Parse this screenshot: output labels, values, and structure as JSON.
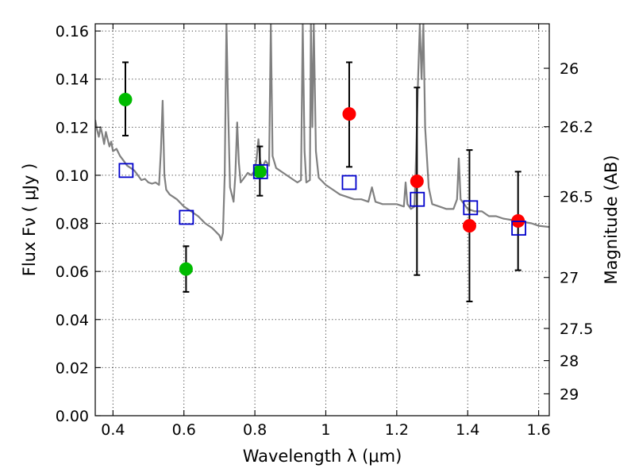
{
  "chart_data": {
    "type": "scatter",
    "title": "",
    "xlabel": "Wavelength  λ (μm)",
    "ylabel": "Flux  Fν  ( μJy )",
    "y2label": "Magnitude (AB)",
    "xlim": [
      0.35,
      1.63
    ],
    "ylim": [
      0.0,
      0.163
    ],
    "grid": true,
    "xticks": [
      0.4,
      0.6,
      0.8,
      1.0,
      1.2,
      1.4,
      1.6
    ],
    "xtick_labels": [
      "0.4",
      "0.6",
      "0.8",
      "1",
      "1.2",
      "1.4",
      "1.6"
    ],
    "yticks": [
      0.0,
      0.02,
      0.04,
      0.06,
      0.08,
      0.1,
      0.12,
      0.14,
      0.16
    ],
    "ytick_labels": [
      "0.00",
      "0.02",
      "0.04",
      "0.06",
      "0.08",
      "0.10",
      "0.12",
      "0.14",
      "0.16"
    ],
    "y2ticks": [
      {
        "label": "26",
        "flux": 0.1445
      },
      {
        "label": "26.2",
        "flux": 0.1202
      },
      {
        "label": "26.5",
        "flux": 0.0912
      },
      {
        "label": "27",
        "flux": 0.0575
      },
      {
        "label": "27.5",
        "flux": 0.0363
      },
      {
        "label": "28",
        "flux": 0.0229
      },
      {
        "label": "29",
        "flux": 0.0091
      }
    ],
    "colors": {
      "spectrum": "#808080",
      "green": "#00bb00",
      "red": "#ff0000",
      "model_box": "#0000cc",
      "errorbar": "#000000"
    },
    "series": [
      {
        "kind": "line",
        "points": [
          [
            0.35,
            0.123
          ],
          [
            0.355,
            0.119
          ],
          [
            0.36,
            0.116
          ],
          [
            0.365,
            0.12
          ],
          [
            0.37,
            0.117
          ],
          [
            0.375,
            0.113
          ],
          [
            0.38,
            0.118
          ],
          [
            0.385,
            0.115
          ],
          [
            0.39,
            0.112
          ],
          [
            0.395,
            0.114
          ],
          [
            0.4,
            0.11
          ],
          [
            0.41,
            0.111
          ],
          [
            0.42,
            0.108
          ],
          [
            0.43,
            0.106
          ],
          [
            0.44,
            0.104
          ],
          [
            0.45,
            0.103
          ],
          [
            0.46,
            0.102
          ],
          [
            0.47,
            0.1
          ],
          [
            0.48,
            0.098
          ],
          [
            0.49,
            0.0985
          ],
          [
            0.5,
            0.097
          ],
          [
            0.51,
            0.0965
          ],
          [
            0.52,
            0.097
          ],
          [
            0.53,
            0.096
          ],
          [
            0.535,
            0.11
          ],
          [
            0.54,
            0.131
          ],
          [
            0.545,
            0.1
          ],
          [
            0.55,
            0.094
          ],
          [
            0.56,
            0.092
          ],
          [
            0.58,
            0.09
          ],
          [
            0.6,
            0.087
          ],
          [
            0.62,
            0.085
          ],
          [
            0.64,
            0.083
          ],
          [
            0.66,
            0.08
          ],
          [
            0.68,
            0.078
          ],
          [
            0.7,
            0.075
          ],
          [
            0.705,
            0.073
          ],
          [
            0.71,
            0.076
          ],
          [
            0.715,
            0.1
          ],
          [
            0.72,
            0.163
          ],
          [
            0.725,
            0.125
          ],
          [
            0.73,
            0.095
          ],
          [
            0.74,
            0.089
          ],
          [
            0.745,
            0.1
          ],
          [
            0.75,
            0.122
          ],
          [
            0.755,
            0.105
          ],
          [
            0.76,
            0.097
          ],
          [
            0.77,
            0.099
          ],
          [
            0.78,
            0.101
          ],
          [
            0.79,
            0.1
          ],
          [
            0.8,
            0.102
          ],
          [
            0.805,
            0.107
          ],
          [
            0.81,
            0.115
          ],
          [
            0.815,
            0.106
          ],
          [
            0.82,
            0.103
          ],
          [
            0.83,
            0.106
          ],
          [
            0.84,
            0.104
          ],
          [
            0.845,
            0.163
          ],
          [
            0.85,
            0.108
          ],
          [
            0.86,
            0.103
          ],
          [
            0.88,
            0.101
          ],
          [
            0.9,
            0.099
          ],
          [
            0.92,
            0.097
          ],
          [
            0.93,
            0.098
          ],
          [
            0.935,
            0.163
          ],
          [
            0.94,
            0.11
          ],
          [
            0.945,
            0.097
          ],
          [
            0.955,
            0.098
          ],
          [
            0.958,
            0.163
          ],
          [
            0.962,
            0.12
          ],
          [
            0.966,
            0.163
          ],
          [
            0.972,
            0.11
          ],
          [
            0.98,
            0.099
          ],
          [
            1.0,
            0.096
          ],
          [
            1.02,
            0.094
          ],
          [
            1.04,
            0.092
          ],
          [
            1.06,
            0.091
          ],
          [
            1.08,
            0.09
          ],
          [
            1.1,
            0.09
          ],
          [
            1.12,
            0.089
          ],
          [
            1.13,
            0.095
          ],
          [
            1.14,
            0.089
          ],
          [
            1.16,
            0.088
          ],
          [
            1.18,
            0.088
          ],
          [
            1.2,
            0.088
          ],
          [
            1.22,
            0.087
          ],
          [
            1.225,
            0.097
          ],
          [
            1.23,
            0.088
          ],
          [
            1.24,
            0.086
          ],
          [
            1.25,
            0.087
          ],
          [
            1.255,
            0.11
          ],
          [
            1.26,
            0.14
          ],
          [
            1.265,
            0.163
          ],
          [
            1.27,
            0.14
          ],
          [
            1.275,
            0.163
          ],
          [
            1.28,
            0.12
          ],
          [
            1.29,
            0.095
          ],
          [
            1.3,
            0.088
          ],
          [
            1.32,
            0.087
          ],
          [
            1.34,
            0.086
          ],
          [
            1.36,
            0.086
          ],
          [
            1.37,
            0.09
          ],
          [
            1.375,
            0.107
          ],
          [
            1.38,
            0.09
          ],
          [
            1.4,
            0.086
          ],
          [
            1.42,
            0.085
          ],
          [
            1.44,
            0.085
          ],
          [
            1.46,
            0.083
          ],
          [
            1.48,
            0.083
          ],
          [
            1.5,
            0.082
          ],
          [
            1.52,
            0.0815
          ],
          [
            1.54,
            0.081
          ],
          [
            1.56,
            0.0805
          ],
          [
            1.58,
            0.08
          ],
          [
            1.6,
            0.079
          ],
          [
            1.63,
            0.0785
          ]
        ]
      },
      {
        "kind": "points-green",
        "points": [
          {
            "x": 0.435,
            "y": 0.1315,
            "lo": 0.1165,
            "hi": 0.147
          },
          {
            "x": 0.606,
            "y": 0.061,
            "lo": 0.0515,
            "hi": 0.0705
          },
          {
            "x": 0.814,
            "y": 0.1015,
            "lo": 0.0915,
            "hi": 0.112
          }
        ]
      },
      {
        "kind": "points-red",
        "points": [
          {
            "x": 1.066,
            "y": 0.1255,
            "lo": 0.1035,
            "hi": 0.147
          },
          {
            "x": 1.257,
            "y": 0.0975,
            "lo": 0.0585,
            "hi": 0.1365
          },
          {
            "x": 1.405,
            "y": 0.079,
            "lo": 0.0475,
            "hi": 0.1105
          },
          {
            "x": 1.542,
            "y": 0.081,
            "lo": 0.0605,
            "hi": 0.1015
          }
        ]
      },
      {
        "kind": "model-boxes",
        "points": [
          {
            "x": 0.437,
            "y": 0.102
          },
          {
            "x": 0.607,
            "y": 0.0825
          },
          {
            "x": 0.816,
            "y": 0.1015
          },
          {
            "x": 1.066,
            "y": 0.097
          },
          {
            "x": 1.258,
            "y": 0.09
          },
          {
            "x": 1.408,
            "y": 0.0865
          },
          {
            "x": 1.544,
            "y": 0.078
          }
        ]
      }
    ]
  }
}
